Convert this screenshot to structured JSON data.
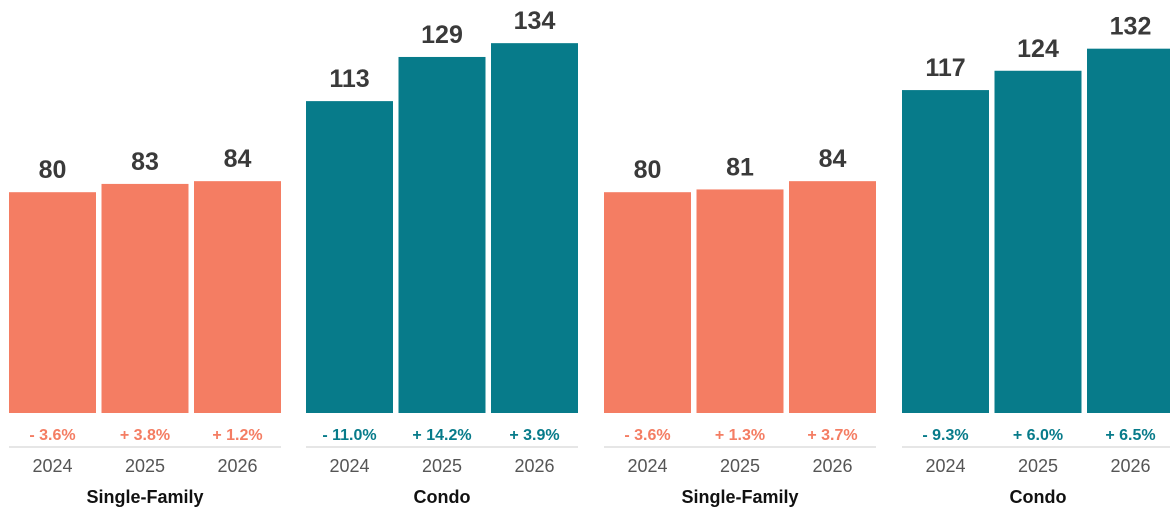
{
  "colors": {
    "single_family": "#F47D63",
    "condo": "#077B8A",
    "axis": "#cccccc"
  },
  "chart_data": [
    {
      "type": "bar",
      "groups": [
        {
          "name": "Single-Family",
          "categories": [
            "2024",
            "2025",
            "2026"
          ],
          "values": [
            80,
            83,
            84
          ],
          "changes": [
            "- 3.6%",
            "+ 3.8%",
            "+ 1.2%"
          ]
        },
        {
          "name": "Condo",
          "categories": [
            "2024",
            "2025",
            "2026"
          ],
          "values": [
            113,
            129,
            134
          ],
          "changes": [
            "- 11.0%",
            "+ 14.2%",
            "+ 3.9%"
          ]
        }
      ]
    },
    {
      "type": "bar",
      "groups": [
        {
          "name": "Single-Family",
          "categories": [
            "2024",
            "2025",
            "2026"
          ],
          "values": [
            80,
            81,
            84
          ],
          "changes": [
            "- 3.6%",
            "+ 1.3%",
            "+ 3.7%"
          ]
        },
        {
          "name": "Condo",
          "categories": [
            "2024",
            "2025",
            "2026"
          ],
          "values": [
            117,
            124,
            132
          ],
          "changes": [
            "- 9.3%",
            "+ 6.0%",
            "+ 6.5%"
          ]
        }
      ]
    }
  ]
}
